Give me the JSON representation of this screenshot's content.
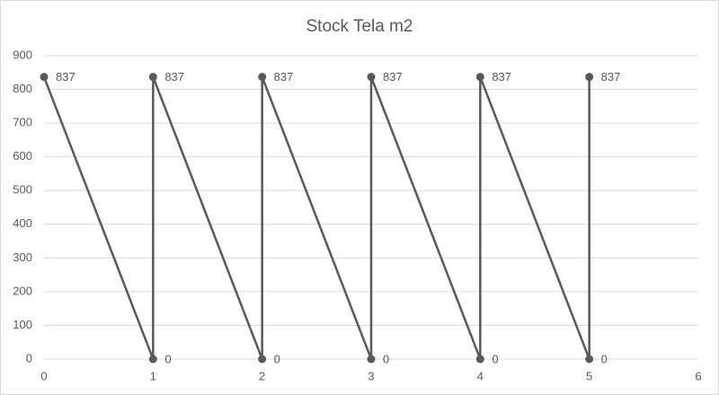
{
  "chart_data": {
    "type": "scatter",
    "title": "Stock Tela m2",
    "x": [
      0,
      1,
      1,
      2,
      2,
      3,
      3,
      4,
      4,
      5,
      5
    ],
    "values": [
      837,
      0,
      837,
      0,
      837,
      0,
      837,
      0,
      837,
      0,
      837
    ],
    "color": "#595959",
    "lines": true,
    "data_labels": true,
    "xlim": [
      0,
      6
    ],
    "xticks": [
      0,
      1,
      2,
      3,
      4,
      5,
      6
    ],
    "ylim": [
      0,
      900
    ],
    "yticks": [
      0,
      100,
      200,
      300,
      400,
      500,
      600,
      700,
      800,
      900
    ],
    "grid": true
  }
}
